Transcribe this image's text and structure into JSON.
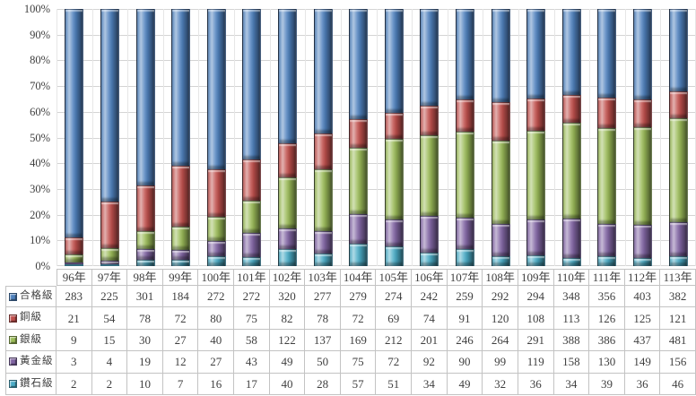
{
  "chart_data": {
    "type": "bar",
    "variant": "stacked-100-percent",
    "title": "",
    "categories": [
      "96年",
      "97年",
      "98年",
      "99年",
      "100年",
      "101年",
      "102年",
      "103年",
      "104年",
      "105年",
      "106年",
      "107年",
      "108年",
      "109年",
      "110年",
      "111年",
      "112年",
      "113年"
    ],
    "series": [
      {
        "name": "合格級",
        "color": "#4F81BD",
        "values": [
          283,
          225,
          301,
          184,
          272,
          272,
          320,
          277,
          279,
          274,
          242,
          259,
          292,
          294,
          348,
          356,
          403,
          382
        ]
      },
      {
        "name": "銅級",
        "color": "#C0504D",
        "values": [
          21,
          54,
          78,
          72,
          80,
          75,
          82,
          78,
          72,
          69,
          74,
          91,
          120,
          108,
          113,
          126,
          125,
          121
        ]
      },
      {
        "name": "銀級",
        "color": "#9BBB59",
        "values": [
          9,
          15,
          30,
          27,
          40,
          58,
          122,
          137,
          169,
          212,
          201,
          246,
          264,
          291,
          388,
          386,
          437,
          481
        ]
      },
      {
        "name": "黃金級",
        "color": "#8064A2",
        "values": [
          3,
          4,
          19,
          12,
          27,
          43,
          49,
          50,
          75,
          72,
          92,
          90,
          99,
          119,
          158,
          130,
          149,
          156
        ]
      },
      {
        "name": "鑽石級",
        "color": "#4BACC6",
        "values": [
          2,
          2,
          10,
          7,
          16,
          17,
          40,
          28,
          57,
          51,
          34,
          49,
          32,
          36,
          34,
          39,
          36,
          46
        ]
      }
    ],
    "stack_order_bottom_to_top": [
      "鑽石級",
      "黃金級",
      "銀級",
      "銅級",
      "合格級"
    ],
    "y_axis": {
      "min": 0,
      "max": 100,
      "step": 10,
      "ticks": [
        "100%",
        "90%",
        "80%",
        "70%",
        "60%",
        "50%",
        "40%",
        "30%",
        "20%",
        "10%",
        "0%"
      ]
    },
    "grid": {
      "horizontal": true,
      "vertical": true,
      "h_color": "#D4D4D4",
      "v_color": "#E6E6E6"
    },
    "legend_position": "data-table-left-column"
  }
}
